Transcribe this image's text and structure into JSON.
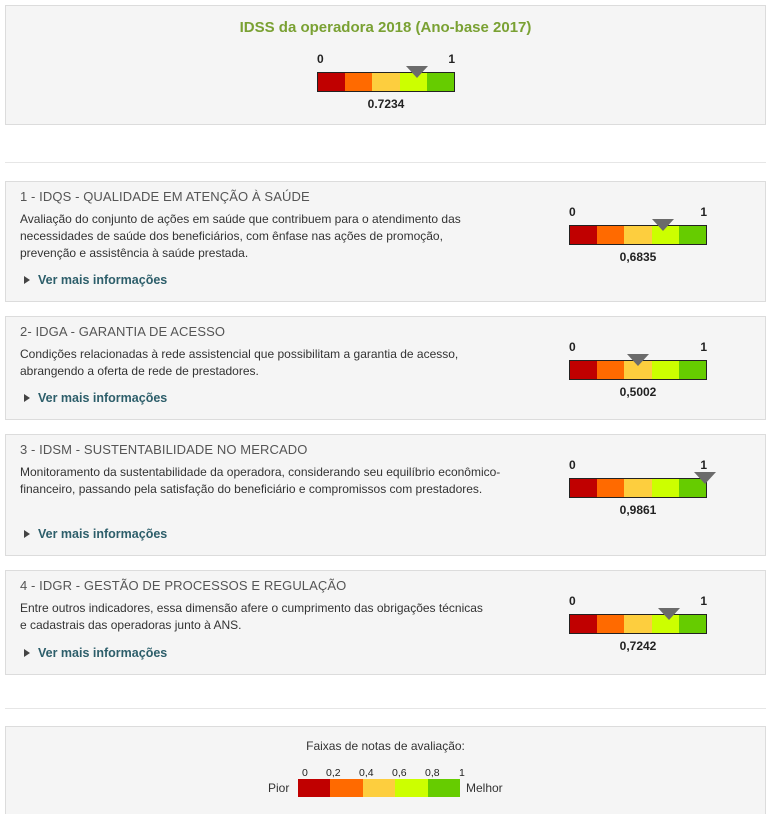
{
  "summary": {
    "title": "IDSS da operadora 2018 (Ano-base 2017)",
    "gauge_min": "0",
    "gauge_max": "1",
    "value": "0.7234",
    "value_num": 0.7234
  },
  "dimensions": [
    {
      "title": "1 - IDQS - QUALIDADE EM ATENÇÃO À SAÚDE",
      "description": "Avaliação do conjunto de ações em saúde que contribuem para o atendimento das necessidades de saúde dos beneficiários, com ênfase nas ações de promoção, prevenção e assistência à saúde prestada.",
      "more_label": "Ver mais informações",
      "gauge_min": "0",
      "gauge_max": "1",
      "value": "0,6835",
      "value_num": 0.6835
    },
    {
      "title": "2- IDGA - GARANTIA DE ACESSO",
      "description": "Condições relacionadas à rede assistencial que possibilitam a garantia de acesso, abrangendo a oferta de rede de prestadores.",
      "more_label": "Ver mais informações",
      "gauge_min": "0",
      "gauge_max": "1",
      "value": "0,5002",
      "value_num": 0.5002
    },
    {
      "title": "3 - IDSM - SUSTENTABILIDADE NO MERCADO",
      "description": "Monitoramento da sustentabilidade da operadora, considerando seu equilíbrio econômico-financeiro, passando pela satisfação do beneficiário e compromissos com prestadores.",
      "more_label": "Ver mais informações",
      "gauge_min": "0",
      "gauge_max": "1",
      "value": "0,9861",
      "value_num": 0.9861
    },
    {
      "title": "4 - IDGR - GESTÃO DE PROCESSOS E REGULAÇÃO",
      "description": "Entre outros indicadores, essa dimensão afere o cumprimento das obrigações técnicas e cadastrais das operadoras junto à ANS.",
      "more_label": "Ver mais informações",
      "gauge_min": "0",
      "gauge_max": "1",
      "value": "0,7242",
      "value_num": 0.7242
    }
  ],
  "legend": {
    "title": "Faixas de notas de avaliação:",
    "ticks": [
      "0",
      "0,2",
      "0,4",
      "0,6",
      "0,8",
      "1"
    ],
    "worst_label": "Pior",
    "best_label": "Melhor"
  },
  "colors": {
    "title_green": "#7aa133",
    "band_1": "#c00000",
    "band_2": "#ff6a00",
    "band_3": "#ffc000",
    "band_4": "#ccff00",
    "band_5": "#66cc00",
    "marker": "#6b6b6b",
    "link": "#2d5e6a"
  }
}
